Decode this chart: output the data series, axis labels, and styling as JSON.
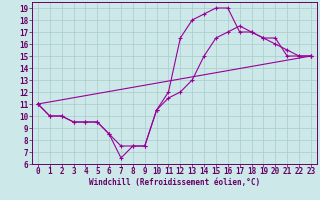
{
  "title": "",
  "xlabel": "Windchill (Refroidissement éolien,°C)",
  "ylabel": "",
  "bg_color": "#cce8e8",
  "line_color": "#990099",
  "grid_color": "#aacccc",
  "text_color": "#660066",
  "spine_color": "#660066",
  "xlim": [
    -0.5,
    23.5
  ],
  "ylim": [
    6,
    19.5
  ],
  "xticks": [
    0,
    1,
    2,
    3,
    4,
    5,
    6,
    7,
    8,
    9,
    10,
    11,
    12,
    13,
    14,
    15,
    16,
    17,
    18,
    19,
    20,
    21,
    22,
    23
  ],
  "yticks": [
    6,
    7,
    8,
    9,
    10,
    11,
    12,
    13,
    14,
    15,
    16,
    17,
    18,
    19
  ],
  "series": [
    {
      "x": [
        0,
        1,
        2,
        3,
        4,
        5,
        6,
        7,
        8,
        9,
        10,
        11,
        12,
        13,
        14,
        15,
        16,
        17,
        18,
        19,
        20,
        21,
        22,
        23
      ],
      "y": [
        11,
        10,
        10,
        9.5,
        9.5,
        9.5,
        8.5,
        7.5,
        7.5,
        7.5,
        10.5,
        11.5,
        12,
        13,
        15,
        16.5,
        17,
        17.5,
        17,
        16.5,
        16.5,
        15,
        15,
        15
      ]
    },
    {
      "x": [
        0,
        1,
        2,
        3,
        4,
        5,
        6,
        7,
        8,
        9,
        10,
        11,
        12,
        13,
        14,
        15,
        16,
        17,
        18,
        19,
        20,
        21,
        22,
        23
      ],
      "y": [
        11,
        10,
        10,
        9.5,
        9.5,
        9.5,
        8.5,
        6.5,
        7.5,
        7.5,
        10.5,
        12,
        16.5,
        18,
        18.5,
        19,
        19,
        17,
        17,
        16.5,
        16,
        15.5,
        15,
        15
      ]
    },
    {
      "x": [
        0,
        23
      ],
      "y": [
        11,
        15
      ]
    }
  ],
  "marker": "+",
  "linewidth": 0.8,
  "markersize": 2.5,
  "tick_fontsize": 5.5,
  "xlabel_fontsize": 5.5
}
